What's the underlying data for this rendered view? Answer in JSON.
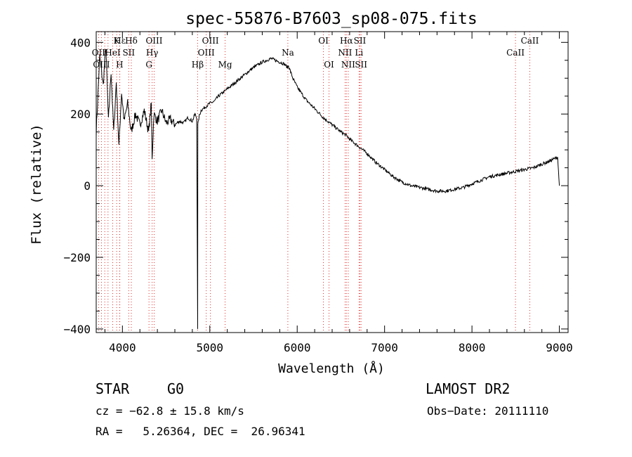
{
  "chart_data": {
    "type": "line",
    "title": "spec-55876-B7603_sp08-075.fits",
    "xlabel": "Wavelength (Å)",
    "ylabel": "Flux (relative)",
    "xlim": [
      3700,
      9100
    ],
    "ylim": [
      -410,
      430
    ],
    "x_ticks": [
      4000,
      5000,
      6000,
      7000,
      8000,
      9000
    ],
    "y_ticks": [
      -400,
      -200,
      0,
      200,
      400
    ],
    "grid": false,
    "series": [
      {
        "x": [
          3700,
          3740,
          3780,
          3810,
          3840,
          3870,
          3900,
          3930,
          3960,
          3990,
          4020,
          4060,
          4100,
          4150,
          4200,
          4250,
          4300,
          4330,
          4340,
          4360,
          4400,
          4450,
          4500,
          4550,
          4600,
          4650,
          4700,
          4750,
          4800,
          4830,
          4850,
          4861,
          4863,
          4880,
          4900,
          4950,
          5000,
          5050,
          5100,
          5150,
          5200,
          5300,
          5400,
          5500,
          5600,
          5700,
          5800,
          5850,
          5890,
          5900,
          5950,
          6000,
          6100,
          6200,
          6300,
          6400,
          6500,
          6563,
          6600,
          6700,
          6800,
          6900,
          7000,
          7100,
          7200,
          7300,
          7400,
          7500,
          7600,
          7700,
          7800,
          7900,
          8000,
          8100,
          8200,
          8300,
          8400,
          8500,
          8600,
          8700,
          8800,
          8900,
          8980,
          9000
        ],
        "y": [
          150,
          360,
          280,
          390,
          180,
          320,
          150,
          290,
          110,
          260,
          180,
          230,
          150,
          200,
          170,
          210,
          150,
          230,
          80,
          200,
          180,
          210,
          175,
          185,
          170,
          180,
          175,
          190,
          180,
          200,
          190,
          -400,
          170,
          195,
          210,
          220,
          230,
          235,
          250,
          260,
          270,
          290,
          310,
          330,
          345,
          355,
          345,
          340,
          330,
          335,
          300,
          275,
          240,
          215,
          190,
          170,
          150,
          140,
          130,
          110,
          90,
          65,
          45,
          25,
          10,
          0,
          -5,
          -10,
          -15,
          -15,
          -10,
          -5,
          5,
          15,
          25,
          30,
          35,
          40,
          45,
          50,
          60,
          70,
          80,
          0
        ]
      }
    ],
    "line_labels": [
      {
        "text": "Hε",
        "row": 0,
        "x": 3970
      },
      {
        "text": "K",
        "row": 0,
        "x": 3934
      },
      {
        "text": "Hδ",
        "row": 0,
        "x": 4102
      },
      {
        "text": "OIII",
        "row": 0,
        "x": 4363
      },
      {
        "text": "OIII",
        "row": 0,
        "x": 5007
      },
      {
        "text": "OI",
        "row": 0,
        "x": 6300
      },
      {
        "text": "Hα",
        "row": 0,
        "x": 6563
      },
      {
        "text": "SII",
        "row": 0,
        "x": 6717
      },
      {
        "text": "CaII",
        "row": 0,
        "x": 8662
      },
      {
        "text": "OII",
        "row": 1,
        "x": 3727
      },
      {
        "text": "HeI",
        "row": 1,
        "x": 3889
      },
      {
        "text": "SII",
        "row": 1,
        "x": 4072
      },
      {
        "text": "Hγ",
        "row": 1,
        "x": 4340
      },
      {
        "text": "OIII",
        "row": 1,
        "x": 4959
      },
      {
        "text": "Na",
        "row": 1,
        "x": 5893
      },
      {
        "text": "NII",
        "row": 1,
        "x": 6548
      },
      {
        "text": "Li",
        "row": 1,
        "x": 6708
      },
      {
        "text": "CaII",
        "row": 1,
        "x": 8498
      },
      {
        "text": "OIII",
        "row": 2,
        "x": 3760
      },
      {
        "text": "H",
        "row": 2,
        "x": 3968
      },
      {
        "text": "G",
        "row": 2,
        "x": 4304
      },
      {
        "text": "Hβ",
        "row": 2,
        "x": 4861
      },
      {
        "text": "Mg",
        "row": 2,
        "x": 5175
      },
      {
        "text": "OI",
        "row": 2,
        "x": 6364
      },
      {
        "text": "NII",
        "row": 2,
        "x": 6584
      },
      {
        "text": "SII",
        "row": 2,
        "x": 6731
      }
    ],
    "marker_lines": [
      3727,
      3760,
      3798,
      3835,
      3889,
      3934,
      3968,
      3970,
      4072,
      4102,
      4304,
      4340,
      4363,
      4861,
      4959,
      5007,
      5175,
      5893,
      6300,
      6364,
      6548,
      6563,
      6584,
      6708,
      6717,
      6731,
      8498,
      8662
    ],
    "marker_color": "#e03030"
  },
  "info": {
    "object_class": "STAR",
    "subclass": "G0",
    "survey": "LAMOST DR2",
    "cz": "cz = −62.8 ± 15.8 km/s",
    "obs_date": "Obs−Date: 20111110",
    "coords": "RA =   5.26364, DEC =  26.96341"
  }
}
